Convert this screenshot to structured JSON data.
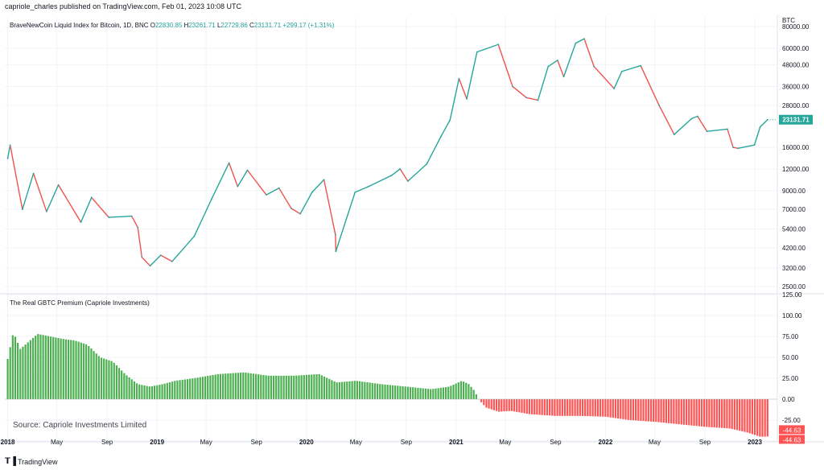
{
  "header": {
    "published_line": "capriole_charles published on TradingView.com, Feb 01, 2023 10:08 UTC"
  },
  "footer": {
    "brand": "TradingView",
    "brand_icon": "tradingview-logo-icon"
  },
  "colors": {
    "up": "#26a69a",
    "down": "#ef5350",
    "premium_positive": "#4caf50",
    "premium_negative": "#ff5252",
    "price_tag": "#26a69a",
    "grid": "#f0f3fa"
  },
  "chart_data": [
    {
      "type": "line",
      "title": "BraveNewCoin Liquid Index for Bitcoin, 1D, BNC",
      "ohlc": {
        "open_label": "O",
        "open": "22830.85",
        "high_label": "H",
        "high": "23261.71",
        "low_label": "L",
        "low": "22729.86",
        "close_label": "C",
        "close": "23131.71",
        "change": "+299.17 (+1.31%)"
      },
      "ylabel": "BTC",
      "y_scale": "log",
      "y_ticks": [
        "80000.00",
        "60000.00",
        "48000.00",
        "36000.00",
        "28000.00",
        "16000.00",
        "12000.00",
        "9000.00",
        "7000.00",
        "5400.00",
        "4200.00",
        "3200.00",
        "2500.00"
      ],
      "ylim": [
        2300,
        90000
      ],
      "last_price_label": "23131.71",
      "x": [
        "2018-01-01",
        "2018-01-07",
        "2018-02-06",
        "2018-03-05",
        "2018-04-06",
        "2018-05-05",
        "2018-06-29",
        "2018-07-25",
        "2018-09-05",
        "2018-10-31",
        "2018-11-15",
        "2018-11-25",
        "2018-12-15",
        "2019-01-10",
        "2019-02-07",
        "2019-04-02",
        "2019-05-14",
        "2019-06-26",
        "2019-07-17",
        "2019-08-10",
        "2019-09-25",
        "2019-10-26",
        "2019-11-25",
        "2019-12-17",
        "2020-01-15",
        "2020-02-13",
        "2020-03-12",
        "2020-03-13",
        "2020-04-29",
        "2020-06-01",
        "2020-07-27",
        "2020-08-17",
        "2020-09-05",
        "2020-10-21",
        "2020-11-25",
        "2020-12-17",
        "2021-01-08",
        "2021-01-27",
        "2021-02-21",
        "2021-04-14",
        "2021-05-19",
        "2021-06-22",
        "2021-07-20",
        "2021-08-14",
        "2021-09-06",
        "2021-09-21",
        "2021-10-20",
        "2021-11-10",
        "2021-12-04",
        "2022-01-22",
        "2022-02-10",
        "2022-03-28",
        "2022-05-12",
        "2022-06-18",
        "2022-07-31",
        "2022-08-14",
        "2022-09-06",
        "2022-10-26",
        "2022-11-09",
        "2022-11-21",
        "2022-12-31",
        "2023-01-14",
        "2023-02-01"
      ],
      "y": [
        13800,
        16500,
        7000,
        11300,
        6800,
        9700,
        5900,
        8200,
        6300,
        6400,
        5500,
        3700,
        3300,
        3800,
        3500,
        4900,
        8000,
        13000,
        9500,
        11800,
        8500,
        9300,
        7100,
        6600,
        8800,
        10400,
        5000,
        4000,
        8800,
        9500,
        11000,
        12000,
        10200,
        12800,
        18500,
        23000,
        40000,
        30500,
        57000,
        63000,
        36000,
        31000,
        30000,
        47000,
        51000,
        41000,
        64000,
        68000,
        47000,
        35000,
        44000,
        47500,
        28000,
        19000,
        23500,
        24200,
        19800,
        20400,
        16000,
        15800,
        16500,
        21000,
        23131.71
      ]
    },
    {
      "type": "bar",
      "title": "The Real GBTC Premium (Capriole Investments)",
      "y_ticks": [
        "125.00",
        "100.00",
        "75.00",
        "50.00",
        "25.00",
        "0.00",
        "-25.00",
        "-50.00"
      ],
      "ylim": [
        -50,
        125
      ],
      "last_value_labels": [
        "-44.63",
        "-44.63"
      ],
      "source_note": "Source: Capriole Investments Limited",
      "x": [
        "2018-01-01",
        "2018-01-15",
        "2018-02-01",
        "2018-03-15",
        "2018-04-15",
        "2018-05-15",
        "2018-06-15",
        "2018-07-15",
        "2018-08-15",
        "2018-09-15",
        "2018-10-15",
        "2018-11-15",
        "2018-12-15",
        "2019-01-15",
        "2019-02-15",
        "2019-04-01",
        "2019-06-01",
        "2019-08-01",
        "2019-10-01",
        "2019-12-01",
        "2020-02-01",
        "2020-03-15",
        "2020-05-01",
        "2020-07-01",
        "2020-09-01",
        "2020-11-01",
        "2020-12-15",
        "2021-01-15",
        "2021-02-01",
        "2021-02-15",
        "2021-02-25",
        "2021-03-15",
        "2021-04-15",
        "2021-05-15",
        "2021-07-01",
        "2021-09-01",
        "2021-11-01",
        "2022-01-01",
        "2022-03-01",
        "2022-05-01",
        "2022-07-01",
        "2022-09-01",
        "2022-11-01",
        "2022-12-15",
        "2023-01-15",
        "2023-02-01"
      ],
      "y": [
        48,
        80,
        60,
        78,
        75,
        72,
        70,
        65,
        50,
        45,
        30,
        18,
        15,
        18,
        22,
        25,
        30,
        32,
        28,
        28,
        30,
        20,
        22,
        18,
        15,
        12,
        15,
        22,
        18,
        10,
        0,
        -10,
        -15,
        -14,
        -18,
        -20,
        -20,
        -21,
        -25,
        -27,
        -30,
        -33,
        -35,
        -40,
        -45,
        -44.63
      ]
    }
  ],
  "x_axis": {
    "ticks": [
      {
        "label": "2018",
        "date": "2018-01-01",
        "bold": true
      },
      {
        "label": "May",
        "date": "2018-05-01",
        "bold": false
      },
      {
        "label": "Sep",
        "date": "2018-09-01",
        "bold": false
      },
      {
        "label": "2019",
        "date": "2019-01-01",
        "bold": true
      },
      {
        "label": "May",
        "date": "2019-05-01",
        "bold": false
      },
      {
        "label": "Sep",
        "date": "2019-09-01",
        "bold": false
      },
      {
        "label": "2020",
        "date": "2020-01-01",
        "bold": true
      },
      {
        "label": "May",
        "date": "2020-05-01",
        "bold": false
      },
      {
        "label": "Sep",
        "date": "2020-09-01",
        "bold": false
      },
      {
        "label": "2021",
        "date": "2021-01-01",
        "bold": true
      },
      {
        "label": "May",
        "date": "2021-05-01",
        "bold": false
      },
      {
        "label": "Sep",
        "date": "2021-09-01",
        "bold": false
      },
      {
        "label": "2022",
        "date": "2022-01-01",
        "bold": true
      },
      {
        "label": "May",
        "date": "2022-05-01",
        "bold": false
      },
      {
        "label": "Sep",
        "date": "2022-09-01",
        "bold": false
      },
      {
        "label": "2023",
        "date": "2023-01-01",
        "bold": true
      }
    ]
  }
}
